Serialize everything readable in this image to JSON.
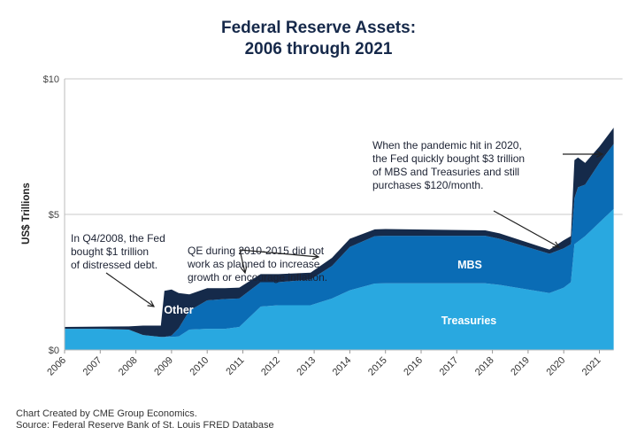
{
  "chart_data": {
    "type": "area",
    "title": [
      "Federal Reserve Assets:",
      "2006 through 2021"
    ],
    "xlabel": "",
    "ylabel": "US$ Trillions",
    "xlim": [
      2006,
      2021.4
    ],
    "ylim": [
      0,
      10
    ],
    "x_ticks": [
      "2006",
      "2007",
      "2008",
      "2009",
      "2010",
      "2011",
      "2012",
      "2013",
      "2014",
      "2015",
      "2016",
      "2017",
      "2018",
      "2019",
      "2020",
      "2021"
    ],
    "y_ticks": [
      {
        "value": 0,
        "label": "$0"
      },
      {
        "value": 5,
        "label": "$5"
      },
      {
        "value": 10,
        "label": "$10"
      }
    ],
    "grid": "horizontal at $5 and $10",
    "stacked": true,
    "x": [
      2006.0,
      2007.0,
      2007.8,
      2008.2,
      2008.7,
      2008.8,
      2009.0,
      2009.2,
      2009.5,
      2010.0,
      2010.5,
      2010.9,
      2011.5,
      2012.0,
      2012.9,
      2013.5,
      2014.0,
      2014.7,
      2015.0,
      2017.8,
      2018.2,
      2019.6,
      2020.0,
      2020.2,
      2020.3,
      2020.4,
      2020.6,
      2021.0,
      2021.4
    ],
    "series": [
      {
        "name": "Treasuries",
        "color": "#29a8e0",
        "values": [
          0.78,
          0.78,
          0.75,
          0.55,
          0.48,
          0.48,
          0.48,
          0.5,
          0.75,
          0.78,
          0.78,
          0.85,
          1.6,
          1.65,
          1.65,
          1.9,
          2.2,
          2.45,
          2.46,
          2.46,
          2.4,
          2.1,
          2.3,
          2.5,
          3.9,
          4.0,
          4.2,
          4.7,
          5.2
        ]
      },
      {
        "name": "MBS",
        "color": "#0a6cb5",
        "values": [
          0,
          0,
          0,
          0,
          0,
          0,
          0.05,
          0.3,
          0.7,
          1.05,
          1.1,
          1.05,
          0.9,
          0.85,
          0.95,
          1.2,
          1.6,
          1.75,
          1.75,
          1.75,
          1.7,
          1.45,
          1.45,
          1.4,
          1.7,
          2.0,
          1.9,
          2.2,
          2.4
        ]
      },
      {
        "name": "Other",
        "color": "#152a4a",
        "values": [
          0.07,
          0.08,
          0.12,
          0.35,
          0.42,
          1.7,
          1.7,
          1.3,
          0.6,
          0.45,
          0.4,
          0.4,
          0.3,
          0.3,
          0.25,
          0.3,
          0.3,
          0.25,
          0.25,
          0.2,
          0.2,
          0.15,
          0.3,
          0.3,
          1.4,
          1.1,
          0.8,
          0.6,
          0.6
        ]
      }
    ],
    "annotations": [
      {
        "text": [
          "In Q4/2008, the Fed",
          "bought $1 trillion",
          "of distressed debt."
        ]
      },
      {
        "text": [
          "QE during 2010-2015 did not",
          "work as planned to increase",
          "growth or encourage inflation."
        ]
      },
      {
        "text": [
          "When the pandemic hit in 2020,",
          "the Fed quickly bought $3 trillion",
          "of MBS and Treasuries and still",
          "purchases $120/month."
        ]
      }
    ]
  },
  "footer": [
    "Chart Created by CME Group Economics.",
    "Source: Federal Reserve Bank of St. Louis FRED Database"
  ]
}
